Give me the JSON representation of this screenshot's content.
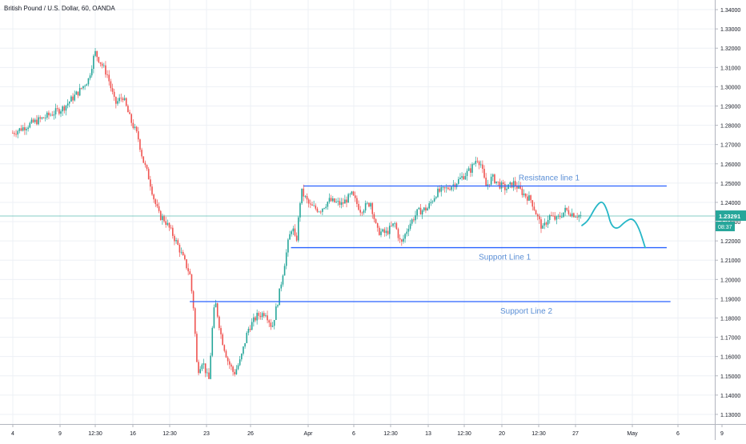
{
  "chart_data": {
    "type": "candlestick",
    "title": "British Pound / U.S. Dollar, 60, OANDA",
    "ylim": [
      1.125,
      1.345
    ],
    "y_ticks": [
      "1.13000",
      "1.14000",
      "1.15000",
      "1.16000",
      "1.17000",
      "1.18000",
      "1.19000",
      "1.20000",
      "1.21000",
      "1.22000",
      "1.23000",
      "1.24000",
      "1.25000",
      "1.26000",
      "1.27000",
      "1.28000",
      "1.29000",
      "1.30000",
      "1.31000",
      "1.32000",
      "1.33000",
      "1.34000"
    ],
    "x_ticks": [
      "4",
      "9",
      "12:30",
      "16",
      "12:30",
      "23",
      "26",
      "Apr",
      "6",
      "12:30",
      "13",
      "12:30",
      "20",
      "12:30",
      "27",
      "May",
      "6",
      "9"
    ],
    "price_series": [
      {
        "t": 0.0,
        "p": 1.276
      },
      {
        "t": 1.5,
        "p": 1.281
      },
      {
        "t": 2.5,
        "p": 1.284
      },
      {
        "t": 4.0,
        "p": 1.289
      },
      {
        "t": 5.3,
        "p": 1.298
      },
      {
        "t": 6.0,
        "p": 1.304
      },
      {
        "t": 6.5,
        "p": 1.318
      },
      {
        "t": 7.0,
        "p": 1.312
      },
      {
        "t": 7.5,
        "p": 1.306
      },
      {
        "t": 8.1,
        "p": 1.291
      },
      {
        "t": 8.7,
        "p": 1.295
      },
      {
        "t": 9.3,
        "p": 1.283
      },
      {
        "t": 9.9,
        "p": 1.274
      },
      {
        "t": 10.3,
        "p": 1.262
      },
      {
        "t": 10.8,
        "p": 1.252
      },
      {
        "t": 11.2,
        "p": 1.241
      },
      {
        "t": 11.6,
        "p": 1.233
      },
      {
        "t": 12.0,
        "p": 1.231
      },
      {
        "t": 12.6,
        "p": 1.224
      },
      {
        "t": 13.1,
        "p": 1.217
      },
      {
        "t": 13.6,
        "p": 1.209
      },
      {
        "t": 14.0,
        "p": 1.203
      },
      {
        "t": 14.3,
        "p": 1.185
      },
      {
        "t": 14.6,
        "p": 1.152
      },
      {
        "t": 15.0,
        "p": 1.158
      },
      {
        "t": 15.5,
        "p": 1.147
      },
      {
        "t": 15.8,
        "p": 1.176
      },
      {
        "t": 16.0,
        "p": 1.189
      },
      {
        "t": 16.5,
        "p": 1.17
      },
      {
        "t": 17.0,
        "p": 1.158
      },
      {
        "t": 17.5,
        "p": 1.151
      },
      {
        "t": 18.0,
        "p": 1.158
      },
      {
        "t": 18.6,
        "p": 1.174
      },
      {
        "t": 19.3,
        "p": 1.181
      },
      {
        "t": 20.0,
        "p": 1.183
      },
      {
        "t": 20.5,
        "p": 1.175
      },
      {
        "t": 21.0,
        "p": 1.19
      },
      {
        "t": 21.4,
        "p": 1.205
      },
      {
        "t": 21.8,
        "p": 1.22
      },
      {
        "t": 22.1,
        "p": 1.228
      },
      {
        "t": 22.4,
        "p": 1.218
      },
      {
        "t": 22.8,
        "p": 1.246
      },
      {
        "t": 23.5,
        "p": 1.238
      },
      {
        "t": 24.3,
        "p": 1.236
      },
      {
        "t": 25.0,
        "p": 1.241
      },
      {
        "t": 26.0,
        "p": 1.239
      },
      {
        "t": 26.8,
        "p": 1.244
      },
      {
        "t": 27.5,
        "p": 1.236
      },
      {
        "t": 28.3,
        "p": 1.24
      },
      {
        "t": 28.8,
        "p": 1.225
      },
      {
        "t": 29.5,
        "p": 1.224
      },
      {
        "t": 30.2,
        "p": 1.229
      },
      {
        "t": 30.7,
        "p": 1.218
      },
      {
        "t": 31.3,
        "p": 1.228
      },
      {
        "t": 32.0,
        "p": 1.235
      },
      {
        "t": 32.8,
        "p": 1.237
      },
      {
        "t": 33.5,
        "p": 1.245
      },
      {
        "t": 34.3,
        "p": 1.247
      },
      {
        "t": 35.0,
        "p": 1.25
      },
      {
        "t": 35.5,
        "p": 1.253
      },
      {
        "t": 36.2,
        "p": 1.257
      },
      {
        "t": 36.7,
        "p": 1.263
      },
      {
        "t": 37.0,
        "p": 1.26
      },
      {
        "t": 37.4,
        "p": 1.248
      },
      {
        "t": 37.9,
        "p": 1.253
      },
      {
        "t": 38.5,
        "p": 1.249
      },
      {
        "t": 39.0,
        "p": 1.247
      },
      {
        "t": 39.6,
        "p": 1.25
      },
      {
        "t": 40.3,
        "p": 1.245
      },
      {
        "t": 41.0,
        "p": 1.241
      },
      {
        "t": 41.5,
        "p": 1.232
      },
      {
        "t": 41.9,
        "p": 1.226
      },
      {
        "t": 42.4,
        "p": 1.233
      },
      {
        "t": 43.0,
        "p": 1.231
      },
      {
        "t": 43.7,
        "p": 1.236
      },
      {
        "t": 44.3,
        "p": 1.234
      },
      {
        "t": 44.9,
        "p": 1.233
      }
    ],
    "x_range": [
      -1,
      55.5
    ],
    "current_price": {
      "label": "1.23291",
      "value": 1.2329,
      "timer": "08:37"
    },
    "horizontal_lines": [
      {
        "name": "Resistance line 1",
        "value": 1.2485,
        "x_start": 23.0,
        "x_end": 51.7,
        "label_x": 42.4
      },
      {
        "name": "Support Line 1",
        "value": 1.2165,
        "x_start": 22.0,
        "x_end": 51.7,
        "label_x": 38.9
      },
      {
        "name": "Support Line 2",
        "value": 1.1885,
        "x_start": 14.0,
        "x_end": 52.0,
        "label_x": 40.6
      }
    ],
    "projection": [
      {
        "t": 45.0,
        "p": 1.228
      },
      {
        "t": 45.5,
        "p": 1.2305
      },
      {
        "t": 46.1,
        "p": 1.238
      },
      {
        "t": 46.6,
        "p": 1.241
      },
      {
        "t": 47.0,
        "p": 1.236
      },
      {
        "t": 47.3,
        "p": 1.228
      },
      {
        "t": 47.8,
        "p": 1.226
      },
      {
        "t": 48.4,
        "p": 1.23
      },
      {
        "t": 49.0,
        "p": 1.232
      },
      {
        "t": 49.5,
        "p": 1.227
      },
      {
        "t": 50.0,
        "p": 1.2165
      }
    ],
    "colors": {
      "up": "#26a69a",
      "down": "#ef5350",
      "level_line": "#2962ff",
      "level_label": "#5b8fd6",
      "projection": "#27b7c7",
      "price_line": "#26a69a",
      "grid": "#edf0f5"
    }
  }
}
